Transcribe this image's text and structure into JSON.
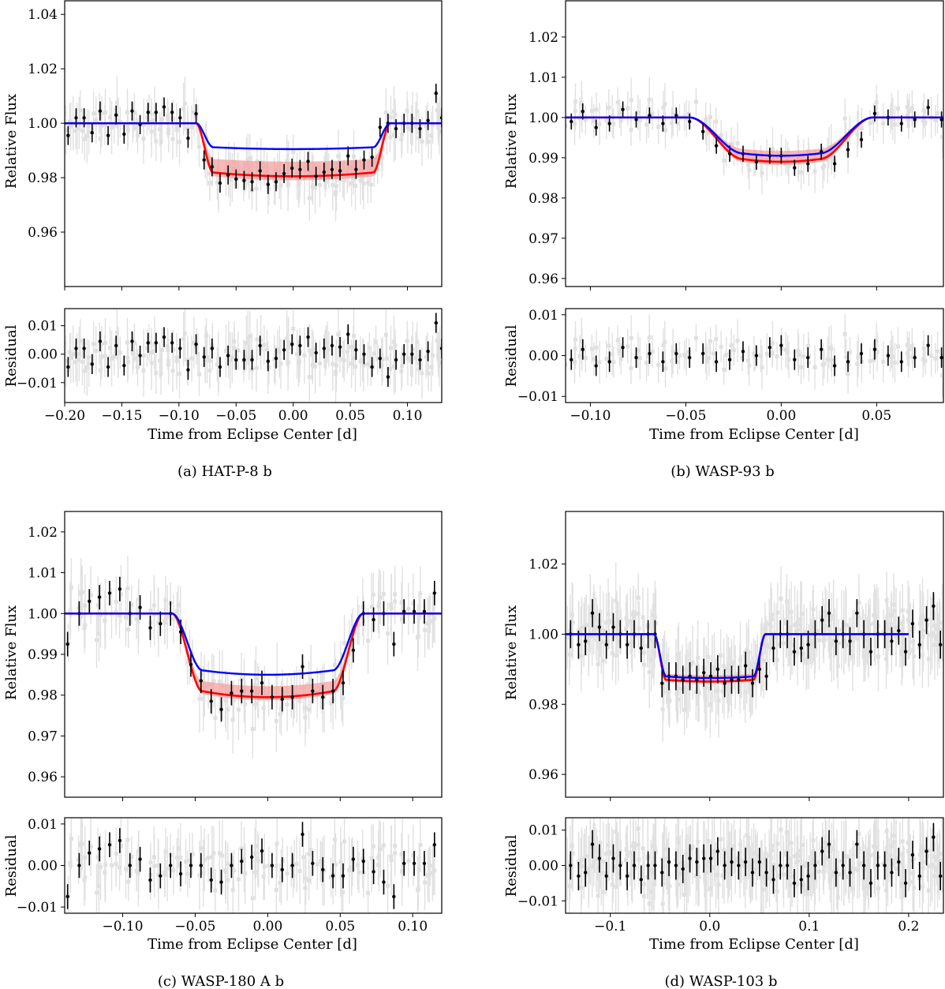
{
  "colors": {
    "model_red": "#ff0000",
    "model_band": "#f4a0a0",
    "model_blue": "#0000ff",
    "binned": "#000000",
    "raw": "#c8c8c8"
  },
  "chart_data": [
    {
      "type": "scatter",
      "panel": "a",
      "caption": "(a) HAT-P-8 b",
      "xlabel": "Time from Eclipse Center [d]",
      "ylabel": "Relative Flux",
      "residual_ylabel": "Residual",
      "xlim": [
        -0.2,
        0.13
      ],
      "ylim": [
        0.94,
        1.045
      ],
      "residual_ylim": [
        -0.017,
        0.016
      ],
      "xticks": [
        -0.2,
        -0.15,
        -0.1,
        -0.05,
        0.0,
        0.05,
        0.1
      ],
      "xtick_labels": [
        "−0.20",
        "−0.15",
        "−0.10",
        "−0.05",
        "0.00",
        "0.05",
        "0.10"
      ],
      "yticks": [
        0.96,
        0.98,
        1.0,
        1.02,
        1.04
      ],
      "ytick_labels": [
        "0.96",
        "0.98",
        "1.00",
        "1.02",
        "1.04"
      ],
      "residual_yticks": [
        -0.01,
        0.0,
        0.01
      ],
      "residual_ytick_labels": [
        "−0.01",
        "0.00",
        "0.01"
      ],
      "transit": {
        "t1": -0.085,
        "t2": -0.07,
        "t3": 0.07,
        "t4": 0.085,
        "depth_red": 0.0195,
        "depth_blue": 0.0095,
        "curv": 0.12,
        "band": 0.003
      },
      "binned_x": [
        -0.197,
        -0.19,
        -0.183,
        -0.176,
        -0.169,
        -0.162,
        -0.155,
        -0.148,
        -0.141,
        -0.134,
        -0.127,
        -0.12,
        -0.113,
        -0.106,
        -0.099,
        -0.092,
        -0.085,
        -0.078,
        -0.071,
        -0.064,
        -0.057,
        -0.05,
        -0.043,
        -0.036,
        -0.029,
        -0.022,
        -0.015,
        -0.008,
        -0.001,
        0.006,
        0.013,
        0.02,
        0.027,
        0.034,
        0.041,
        0.048,
        0.055,
        0.062,
        0.069,
        0.076,
        0.083,
        0.09,
        0.097,
        0.104,
        0.111,
        0.118,
        0.125,
        0.13
      ],
      "binned_y": [
        0.9955,
        1.002,
        1.002,
        0.9965,
        1.0045,
        0.9955,
        1.003,
        0.996,
        1.0045,
        0.9995,
        1.004,
        1.004,
        1.006,
        1.004,
        1.002,
        0.9945,
        1.0035,
        0.9865,
        0.984,
        0.978,
        0.981,
        0.9795,
        0.979,
        0.9785,
        0.9825,
        0.9775,
        0.9785,
        0.9815,
        0.9835,
        0.983,
        0.986,
        0.9805,
        0.982,
        0.983,
        0.9825,
        0.988,
        0.983,
        0.9865,
        0.9875,
        0.9985,
        1.0,
        0.998,
        1.0,
        1.0,
        0.998,
        1.001,
        1.011,
        1.002
      ],
      "binned_err": 0.0035,
      "residuals": [
        -0.0045,
        0.002,
        0.002,
        -0.0035,
        0.0045,
        -0.0045,
        0.003,
        -0.004,
        0.0045,
        -0.0005,
        0.004,
        0.004,
        0.006,
        0.004,
        0.002,
        -0.0055,
        0.0035,
        -0.001,
        0.002,
        -0.0045,
        -0.0005,
        -0.002,
        -0.002,
        -0.002,
        0.003,
        -0.0025,
        -0.0015,
        0.0015,
        0.0035,
        0.003,
        0.006,
        0.0005,
        0.002,
        0.003,
        0.0025,
        0.007,
        0.0015,
        0.0,
        -0.0045,
        -0.0015,
        -0.008,
        -0.002,
        0.0,
        0.0,
        -0.002,
        0.001,
        0.011,
        0.002
      ]
    },
    {
      "type": "scatter",
      "panel": "b",
      "caption": "(b) WASP-93 b",
      "xlabel": "Time from Eclipse Center [d]",
      "ylabel": "Relative Flux",
      "residual_ylabel": "Residual",
      "xlim": [
        -0.113,
        0.085
      ],
      "ylim": [
        0.958,
        1.029
      ],
      "residual_ylim": [
        -0.0115,
        0.0115
      ],
      "xticks": [
        -0.1,
        -0.05,
        0.0,
        0.05
      ],
      "xtick_labels": [
        "−0.10",
        "−0.05",
        "0.00",
        "0.05"
      ],
      "yticks": [
        0.96,
        0.97,
        0.98,
        0.99,
        1.0,
        1.01,
        1.02
      ],
      "ytick_labels": [
        "0.96",
        "0.97",
        "0.98",
        "0.99",
        "1.00",
        "1.01",
        "1.02"
      ],
      "residual_yticks": [
        -0.01,
        0.0,
        0.01
      ],
      "residual_ytick_labels": [
        "−0.01",
        "0.00",
        "0.01"
      ],
      "transit": {
        "t1": -0.048,
        "t2": -0.02,
        "t3": 0.02,
        "t4": 0.048,
        "depth_red": 0.011,
        "depth_blue": 0.0095,
        "curv": 0.1,
        "band": 0.0015
      },
      "binned_x": [
        -0.11,
        -0.104,
        -0.097,
        -0.09,
        -0.083,
        -0.076,
        -0.069,
        -0.062,
        -0.055,
        -0.048,
        -0.041,
        -0.034,
        -0.027,
        -0.02,
        -0.013,
        -0.006,
        0.0,
        0.007,
        0.014,
        0.021,
        0.028,
        0.035,
        0.042,
        0.049,
        0.056,
        0.063,
        0.07,
        0.077,
        0.084
      ],
      "binned_y": [
        0.999,
        1.0015,
        0.9975,
        0.9985,
        1.002,
        0.9995,
        1.0005,
        0.9985,
        1.0005,
        0.999,
        0.9965,
        0.993,
        0.991,
        0.991,
        0.989,
        0.9905,
        0.9905,
        0.9875,
        0.9885,
        0.9915,
        0.9885,
        0.992,
        0.9945,
        1.001,
        1.0,
        0.9985,
        0.9995,
        1.0025,
        0.9995
      ],
      "binned_err": 0.002,
      "residuals": [
        -0.001,
        0.0015,
        -0.0025,
        -0.0015,
        0.002,
        -0.0005,
        0.0005,
        -0.0015,
        0.0005,
        -0.0005,
        0.0005,
        -0.0015,
        -0.001,
        0.001,
        0.0,
        0.002,
        0.0025,
        -0.001,
        -0.0005,
        0.0015,
        -0.0025,
        -0.0015,
        0.0005,
        0.0015,
        0.0,
        -0.0015,
        -0.0005,
        0.0025,
        -0.0005
      ],
      "residual_err": 0.0025
    },
    {
      "type": "scatter",
      "panel": "c",
      "caption": "(c) WASP-180 A b",
      "xlabel": "Time from Eclipse Center [d]",
      "ylabel": "Relative Flux",
      "residual_ylabel": "Residual",
      "xlim": [
        -0.14,
        0.12
      ],
      "ylim": [
        0.955,
        1.025
      ],
      "residual_ylim": [
        -0.0115,
        0.0115
      ],
      "xticks": [
        -0.1,
        -0.05,
        0.0,
        0.05,
        0.1
      ],
      "xtick_labels": [
        "−0.10",
        "−0.05",
        "0.00",
        "0.05",
        "0.10"
      ],
      "yticks": [
        0.96,
        0.97,
        0.98,
        0.99,
        1.0,
        1.01,
        1.02
      ],
      "ytick_labels": [
        "0.96",
        "0.97",
        "0.98",
        "0.99",
        "1.00",
        "1.01",
        "1.02"
      ],
      "residual_yticks": [
        -0.01,
        0.0,
        0.01
      ],
      "residual_ytick_labels": [
        "−0.01",
        "0.00",
        "0.01"
      ],
      "transit": {
        "t1": -0.066,
        "t2": -0.045,
        "t3": 0.045,
        "t4": 0.066,
        "depth_red": 0.0205,
        "depth_blue": 0.015,
        "curv": 0.12,
        "band": 0.0015
      },
      "binned_x": [
        -0.138,
        -0.13,
        -0.123,
        -0.116,
        -0.109,
        -0.102,
        -0.095,
        -0.088,
        -0.081,
        -0.074,
        -0.067,
        -0.06,
        -0.053,
        -0.046,
        -0.039,
        -0.032,
        -0.025,
        -0.018,
        -0.011,
        -0.004,
        0.003,
        0.01,
        0.017,
        0.024,
        0.031,
        0.038,
        0.045,
        0.052,
        0.059,
        0.066,
        0.073,
        0.08,
        0.087,
        0.094,
        0.101,
        0.108,
        0.115
      ],
      "binned_y": [
        0.9925,
        1.0,
        1.003,
        1.004,
        1.005,
        1.006,
        1.0,
        1.0015,
        0.9965,
        0.9975,
        1.0,
        0.9955,
        0.9875,
        0.9835,
        0.9785,
        0.9765,
        0.9805,
        0.981,
        0.981,
        0.983,
        0.9795,
        0.979,
        0.9795,
        0.987,
        0.981,
        0.9795,
        0.981,
        0.983,
        0.991,
        1.0,
        0.9985,
        1.0,
        0.9925,
        1.0005,
        1.0005,
        1.0005,
        1.005
      ],
      "binned_err": 0.003,
      "residuals": [
        -0.0075,
        0.0,
        0.003,
        0.004,
        0.005,
        0.006,
        0.0,
        0.0015,
        -0.0035,
        -0.0025,
        0.0,
        -0.002,
        0.0,
        0.0,
        -0.0035,
        -0.004,
        0.0,
        0.001,
        0.002,
        0.0035,
        0.0,
        -0.001,
        0.0,
        0.0075,
        0.0005,
        -0.001,
        -0.0025,
        -0.0025,
        0.0015,
        0.001,
        -0.0015,
        -0.004,
        -0.0075,
        0.0005,
        0.0005,
        0.0005,
        0.005
      ]
    },
    {
      "type": "scatter",
      "panel": "d",
      "caption": "(d) WASP-103 b",
      "xlabel": "Time from Eclipse Center [d]",
      "ylabel": "Relative Flux",
      "residual_ylabel": "Residual",
      "xlim": [
        -0.145,
        0.235
      ],
      "ylim": [
        0.9535,
        1.035
      ],
      "residual_ylim": [
        -0.0135,
        0.0135
      ],
      "xticks": [
        -0.1,
        0.0,
        0.1,
        0.2
      ],
      "xtick_labels": [
        "−0.1",
        "0.0",
        "0.1",
        "0.2"
      ],
      "yticks": [
        0.96,
        0.98,
        1.0,
        1.02
      ],
      "ytick_labels": [
        "0.96",
        "0.98",
        "1.00",
        "1.02"
      ],
      "residual_yticks": [
        -0.01,
        0.0,
        0.01
      ],
      "residual_ytick_labels": [
        "−0.01",
        "0.00",
        "0.01"
      ],
      "transit": {
        "t1": -0.056,
        "t2": -0.044,
        "t3": 0.044,
        "t4": 0.056,
        "depth_red": 0.0135,
        "depth_blue": 0.0125,
        "curv": 0.06,
        "band": 0.001,
        "end": 0.2
      },
      "binned_x": [
        -0.14,
        -0.132,
        -0.125,
        -0.118,
        -0.111,
        -0.104,
        -0.097,
        -0.09,
        -0.083,
        -0.076,
        -0.069,
        -0.062,
        -0.055,
        -0.048,
        -0.041,
        -0.034,
        -0.027,
        -0.02,
        -0.013,
        -0.006,
        0.001,
        0.008,
        0.015,
        0.022,
        0.029,
        0.036,
        0.043,
        0.05,
        0.057,
        0.064,
        0.071,
        0.078,
        0.085,
        0.092,
        0.099,
        0.106,
        0.113,
        0.12,
        0.127,
        0.134,
        0.141,
        0.148,
        0.155,
        0.162,
        0.169,
        0.176,
        0.183,
        0.19,
        0.197,
        0.204,
        0.211,
        0.218,
        0.225,
        0.232
      ],
      "binned_y": [
        1.0,
        0.997,
        0.998,
        1.006,
        1.002,
        0.997,
        1.002,
        1.0,
        0.997,
        1.0,
        0.996,
        1.0,
        1.0,
        0.986,
        0.988,
        0.988,
        0.987,
        0.988,
        0.987,
        0.989,
        0.988,
        0.99,
        0.986,
        0.987,
        0.987,
        0.991,
        0.986,
        0.99,
        0.988,
        0.996,
        1.0,
        1.0,
        0.995,
        0.996,
        0.997,
        1.0,
        1.004,
        1.006,
        0.998,
        1.0,
        0.998,
        1.006,
        1.0,
        0.995,
        1.0,
        1.0,
        0.998,
        1.001,
        0.995,
        1.003,
        0.997,
        1.004,
        1.008,
        0.997
      ],
      "binned_err": 0.004,
      "residuals": [
        0.0,
        -0.003,
        -0.002,
        0.006,
        0.002,
        -0.003,
        0.002,
        0.0,
        -0.003,
        0.0,
        -0.004,
        0.0,
        0.0,
        -0.002,
        0.001,
        0.0,
        -0.001,
        0.002,
        0.001,
        0.002,
        0.002,
        0.004,
        0.0,
        0.001,
        0.0,
        0.001,
        -0.002,
        0.001,
        -0.002,
        -0.004,
        0.0,
        0.0,
        -0.005,
        -0.004,
        -0.003,
        0.0,
        0.004,
        0.006,
        -0.002,
        0.0,
        -0.002,
        0.006,
        0.0,
        -0.005,
        0.0,
        0.0,
        -0.002,
        0.001,
        -0.005,
        0.003,
        -0.003,
        0.004,
        0.008,
        -0.003
      ]
    }
  ]
}
